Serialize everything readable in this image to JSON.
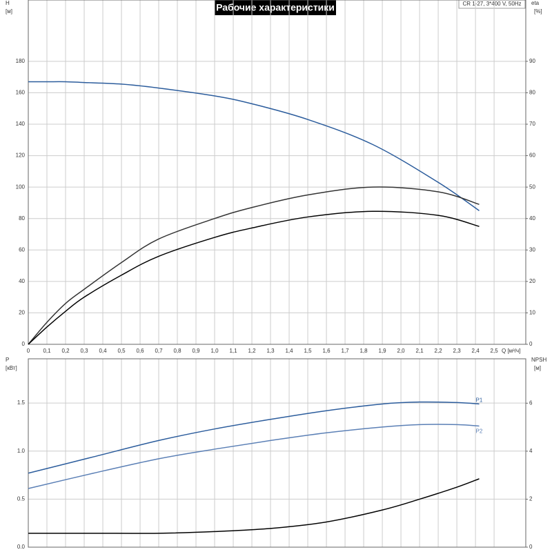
{
  "chart_data": [
    {
      "type": "line",
      "title": "Рабочие характеристики",
      "annotation": "CR 1-27, 3*400 V, 50Hz",
      "xlabel": "Q [м³/ч]",
      "ylabel": "H",
      "yunit": "[м]",
      "y2label": "eta",
      "y2unit": "[%]",
      "xlim": [
        0,
        2.67
      ],
      "ylim": [
        0,
        219
      ],
      "y2lim": [
        0,
        109.5
      ],
      "grid": true,
      "xticks": [
        0,
        {
          "value": 0.1,
          "label": "0,1"
        },
        {
          "value": 0.2,
          "label": "0,2"
        },
        {
          "value": 0.3,
          "label": "0,3"
        },
        {
          "value": 0.4,
          "label": "0,4"
        },
        {
          "value": 0.5,
          "label": "0,5"
        },
        {
          "value": 0.6,
          "label": "0,6"
        },
        {
          "value": 0.7,
          "label": "0,7"
        },
        {
          "value": 0.8,
          "label": "0,8"
        },
        {
          "value": 0.9,
          "label": "0,9"
        },
        {
          "value": 1.0,
          "label": "1,0"
        },
        {
          "value": 1.1,
          "label": "1,1"
        },
        {
          "value": 1.2,
          "label": "1,2"
        },
        {
          "value": 1.3,
          "label": "1,3"
        },
        {
          "value": 1.4,
          "label": "1,4"
        },
        {
          "value": 1.5,
          "label": "1,5"
        },
        {
          "value": 1.6,
          "label": "1,6"
        },
        {
          "value": 1.7,
          "label": "1,7"
        },
        {
          "value": 1.8,
          "label": "1,8"
        },
        {
          "value": 1.9,
          "label": "1,9"
        },
        {
          "value": 2.0,
          "label": "2,0"
        },
        {
          "value": 2.1,
          "label": "2,1"
        },
        {
          "value": 2.2,
          "label": "2,2"
        },
        {
          "value": 2.3,
          "label": "2,3"
        },
        {
          "value": 2.4,
          "label": "2,4"
        },
        {
          "value": 2.5,
          "label": "2,5"
        }
      ],
      "yticks": [
        0,
        20,
        40,
        60,
        80,
        100,
        120,
        140,
        160,
        180
      ],
      "y2ticks": [
        0,
        10,
        20,
        30,
        40,
        50,
        60,
        70,
        80,
        90
      ],
      "x": [
        0,
        0.1,
        0.2,
        0.3,
        0.5,
        0.7,
        1.0,
        1.2,
        1.5,
        1.85,
        2.2,
        2.42
      ],
      "series": [
        {
          "color": "#2b5c9c",
          "values": [
            167,
            167,
            167,
            166.5,
            165.5,
            163,
            158,
            153,
            143,
            127,
            103,
            85
          ]
        },
        {
          "color": "#333333",
          "axis": "y2",
          "values": [
            0,
            7,
            13,
            17.5,
            26,
            33.5,
            40,
            43.5,
            47.5,
            50,
            48.5,
            44.5
          ]
        },
        {
          "color": "#000000",
          "axis": "y2",
          "values": [
            0,
            5.5,
            10.5,
            15,
            22,
            28,
            34,
            37,
            40.5,
            42.3,
            41,
            37.5
          ]
        }
      ]
    },
    {
      "type": "line",
      "ylabel": "P",
      "yunit": "[кВт]",
      "y2label": "NPSH",
      "y2unit": "[м]",
      "xlim": [
        0,
        2.67
      ],
      "ylim": [
        0,
        1.96
      ],
      "y2lim": [
        0,
        7.85
      ],
      "grid": true,
      "xticks": [
        0,
        0.1,
        0.2,
        0.3,
        0.4,
        0.5,
        0.6,
        0.7,
        0.8,
        0.9,
        1.0,
        1.1,
        1.2,
        1.3,
        1.4,
        1.5,
        1.6,
        1.7,
        1.8,
        1.9,
        2.0,
        2.1,
        2.2,
        2.3,
        2.4,
        2.5
      ],
      "yticks": [
        {
          "value": 0,
          "label": "0.0"
        },
        0.5,
        {
          "value": 1,
          "label": "1.0"
        },
        1.5
      ],
      "y2ticks": [
        0,
        2,
        4,
        6
      ],
      "x": [
        0,
        0.35,
        0.7,
        1.0,
        1.3,
        1.6,
        1.9,
        2.1,
        2.3,
        2.42
      ],
      "series": [
        {
          "name": "P1",
          "color": "#2b5c9c",
          "values": [
            0.77,
            0.94,
            1.11,
            1.23,
            1.33,
            1.42,
            1.49,
            1.51,
            1.505,
            1.49
          ]
        },
        {
          "name": "P2",
          "color": "#5a7fb5",
          "values": [
            0.61,
            0.77,
            0.92,
            1.02,
            1.11,
            1.19,
            1.25,
            1.275,
            1.275,
            1.26
          ]
        },
        {
          "color": "#000000",
          "axis": "y2",
          "values": [
            0.58,
            0.58,
            0.58,
            0.65,
            0.78,
            1.05,
            1.55,
            2.0,
            2.5,
            2.85
          ]
        }
      ]
    }
  ]
}
